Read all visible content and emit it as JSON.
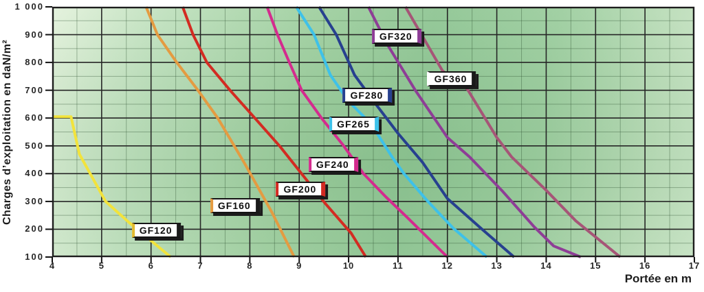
{
  "chart_data": {
    "type": "line",
    "title": "",
    "xlabel": "Portée en m",
    "ylabel": "Charges d’exploitation en daN/m²",
    "xlim": [
      4,
      17
    ],
    "ylim": [
      100,
      1000
    ],
    "x_minor_step": 0.5,
    "y_minor_step": 50,
    "grid": "major+minor",
    "legend_position": "none",
    "background_style": "green-gradient-grid",
    "x_ticks": [
      {
        "label": "4",
        "value": 4
      },
      {
        "label": "5",
        "value": 5
      },
      {
        "label": "6",
        "value": 6
      },
      {
        "label": "7",
        "value": 7
      },
      {
        "label": "8",
        "value": 8
      },
      {
        "label": "9",
        "value": 9
      },
      {
        "label": "10",
        "value": 10
      },
      {
        "label": "11",
        "value": 11
      },
      {
        "label": "12",
        "value": 12
      },
      {
        "label": "13",
        "value": 13
      },
      {
        "label": "14",
        "value": 14
      },
      {
        "label": "15",
        "value": 15
      },
      {
        "label": "16",
        "value": 16
      },
      {
        "label": "17",
        "value": 17
      }
    ],
    "y_ticks": [
      {
        "label": "1 000",
        "value": 1000
      },
      {
        "label": "900",
        "value": 900
      },
      {
        "label": "800",
        "value": 800
      },
      {
        "label": "700",
        "value": 700
      },
      {
        "label": "600",
        "value": 600
      },
      {
        "label": "500",
        "value": 500
      },
      {
        "label": "400",
        "value": 400
      },
      {
        "label": "300",
        "value": 300
      },
      {
        "label": "200",
        "value": 200
      },
      {
        "label": "100",
        "value": 100
      }
    ],
    "series": [
      {
        "name": "GF120",
        "color": "#f2e33c",
        "points": [
          [
            4.02,
            605
          ],
          [
            4.38,
            605
          ],
          [
            4.55,
            470
          ],
          [
            5.08,
            300
          ],
          [
            5.55,
            225
          ],
          [
            6.4,
            100
          ]
        ]
      },
      {
        "name": "GF160",
        "color": "#e49b41",
        "points": [
          [
            5.9,
            1000
          ],
          [
            6.13,
            900
          ],
          [
            6.52,
            800
          ],
          [
            6.95,
            700
          ],
          [
            7.35,
            600
          ],
          [
            7.9,
            435
          ],
          [
            8.45,
            260
          ],
          [
            8.9,
            100
          ]
        ]
      },
      {
        "name": "GF200",
        "color": "#d32b22",
        "points": [
          [
            6.64,
            1000
          ],
          [
            6.85,
            900
          ],
          [
            7.13,
            800
          ],
          [
            7.6,
            700
          ],
          [
            8.1,
            600
          ],
          [
            8.6,
            500
          ],
          [
            8.9,
            433
          ],
          [
            9.53,
            292
          ],
          [
            10.05,
            186
          ],
          [
            10.35,
            100
          ]
        ]
      },
      {
        "name": "GF240",
        "color": "#d42b8e",
        "points": [
          [
            8.35,
            1000
          ],
          [
            8.56,
            900
          ],
          [
            8.8,
            800
          ],
          [
            9.05,
            700
          ],
          [
            9.45,
            600
          ],
          [
            9.9,
            500
          ],
          [
            10.3,
            400
          ],
          [
            10.75,
            317
          ],
          [
            11.2,
            240
          ],
          [
            12.0,
            100
          ]
        ]
      },
      {
        "name": "GF265",
        "color": "#3ec1e9",
        "points": [
          [
            8.94,
            1000
          ],
          [
            9.3,
            900
          ],
          [
            9.63,
            755
          ],
          [
            10.0,
            660
          ],
          [
            10.45,
            580
          ],
          [
            10.88,
            460
          ],
          [
            11.12,
            400
          ],
          [
            11.58,
            305
          ],
          [
            12.11,
            205
          ],
          [
            12.8,
            100
          ]
        ]
      },
      {
        "name": "GF280",
        "color": "#27408f",
        "points": [
          [
            9.4,
            1000
          ],
          [
            9.75,
            900
          ],
          [
            10.12,
            755
          ],
          [
            10.55,
            650
          ],
          [
            11.0,
            545
          ],
          [
            11.5,
            440
          ],
          [
            12.0,
            310
          ],
          [
            12.7,
            200
          ],
          [
            13.35,
            100
          ]
        ]
      },
      {
        "name": "GF320",
        "color": "#8e3d96",
        "points": [
          [
            10.4,
            1000
          ],
          [
            10.8,
            860
          ],
          [
            11.35,
            700
          ],
          [
            12.0,
            530
          ],
          [
            12.45,
            460
          ],
          [
            13.1,
            340
          ],
          [
            13.75,
            210
          ],
          [
            14.15,
            140
          ],
          [
            14.7,
            100
          ]
        ]
      },
      {
        "name": "GF360",
        "color": "#a65577",
        "points": [
          [
            11.15,
            1000
          ],
          [
            11.9,
            770
          ],
          [
            12.4,
            705
          ],
          [
            13.0,
            530
          ],
          [
            13.3,
            460
          ],
          [
            14.0,
            340
          ],
          [
            14.6,
            230
          ],
          [
            15.5,
            100
          ]
        ]
      }
    ],
    "series_labels": [
      {
        "text": "GF120",
        "m": 6.11,
        "load": 196,
        "left_accent": "#e3bb2f",
        "right_accent": "#1a1a1a"
      },
      {
        "text": "GF160",
        "m": 7.7,
        "load": 285,
        "left_accent": "#e49b41",
        "right_accent": "#1a1a1a"
      },
      {
        "text": "GF200",
        "m": 9.03,
        "load": 344,
        "left_accent": "#d32b22",
        "right_accent": "#d32b22"
      },
      {
        "text": "GF240",
        "m": 9.69,
        "load": 433,
        "left_accent": "#d42b8e",
        "right_accent": "#d42b8e"
      },
      {
        "text": "GF265",
        "m": 10.11,
        "load": 578,
        "left_accent": "#3ec1e9",
        "right_accent": "#3ec1e9"
      },
      {
        "text": "GF280",
        "m": 10.38,
        "load": 682,
        "left_accent": "#27408f",
        "right_accent": "#27408f"
      },
      {
        "text": "GF320",
        "m": 10.97,
        "load": 894,
        "left_accent": "#8e3d96",
        "right_accent": "#8e3d96"
      },
      {
        "text": "GF360",
        "m": 12.08,
        "load": 741,
        "left_accent": "#ffffff",
        "right_accent": "#1a1a1a"
      }
    ]
  }
}
